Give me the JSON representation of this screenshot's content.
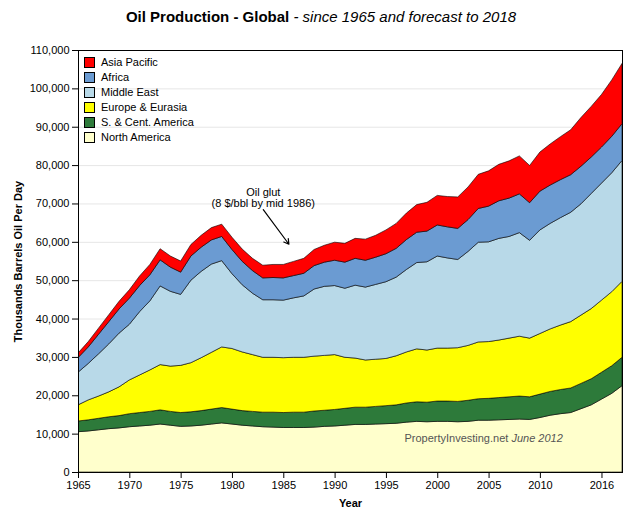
{
  "chart_data": {
    "type": "area",
    "stacked": true,
    "title": "Oil Production - Global",
    "subtitle": "- since 1965 and forecast to 2018",
    "xlabel": "Year",
    "ylabel": "Thousands Barrels Oil Per Day",
    "x": [
      1965,
      1966,
      1967,
      1968,
      1969,
      1970,
      1971,
      1972,
      1973,
      1974,
      1975,
      1976,
      1977,
      1978,
      1979,
      1980,
      1981,
      1982,
      1983,
      1984,
      1985,
      1986,
      1987,
      1988,
      1989,
      1990,
      1991,
      1992,
      1993,
      1994,
      1995,
      1996,
      1997,
      1998,
      1999,
      2000,
      2001,
      2002,
      2003,
      2004,
      2005,
      2006,
      2007,
      2008,
      2009,
      2010,
      2011,
      2012,
      2013,
      2014,
      2015,
      2016,
      2017,
      2018
    ],
    "series": [
      {
        "name": "North America",
        "color": "#FFFFCC",
        "values": [
          10500,
          10700,
          11000,
          11300,
          11500,
          11800,
          12000,
          12200,
          12500,
          12200,
          11900,
          12000,
          12200,
          12500,
          12800,
          12500,
          12200,
          12000,
          11800,
          11700,
          11600,
          11600,
          11600,
          11700,
          11900,
          12000,
          12200,
          12400,
          12400,
          12500,
          12600,
          12700,
          13000,
          13200,
          13100,
          13200,
          13200,
          13100,
          13200,
          13500,
          13500,
          13600,
          13700,
          13800,
          13700,
          14200,
          14800,
          15200,
          15500,
          16500,
          17500,
          19000,
          20500,
          22500
        ]
      },
      {
        "name": "S. & Cent. America",
        "color": "#2D7A3A",
        "values": [
          2800,
          2900,
          3000,
          3100,
          3200,
          3400,
          3500,
          3600,
          3700,
          3600,
          3600,
          3700,
          3800,
          3900,
          4000,
          3900,
          3800,
          3800,
          3800,
          3900,
          3900,
          4000,
          4000,
          4200,
          4200,
          4300,
          4400,
          4500,
          4500,
          4600,
          4700,
          4800,
          5000,
          5100,
          5100,
          5300,
          5300,
          5300,
          5500,
          5600,
          5700,
          5800,
          5900,
          6000,
          5900,
          6100,
          6200,
          6300,
          6400,
          6600,
          6800,
          7000,
          7200,
          7400
        ]
      },
      {
        "name": "Europe & Eurasia",
        "color": "#FFFF00",
        "values": [
          4200,
          5200,
          5800,
          6500,
          7500,
          8800,
          9800,
          10800,
          11800,
          11800,
          12300,
          12800,
          13800,
          14800,
          15800,
          15800,
          15300,
          14800,
          14300,
          14300,
          14300,
          14300,
          14300,
          14300,
          14300,
          14300,
          13300,
          12800,
          12300,
          12300,
          12300,
          12800,
          13300,
          13800,
          13600,
          13800,
          13800,
          14000,
          14300,
          14800,
          14800,
          15000,
          15300,
          15600,
          15300,
          15800,
          16300,
          16800,
          17300,
          17800,
          18300,
          18800,
          19300,
          19800
        ]
      },
      {
        "name": "Middle East",
        "color": "#B8D9E8",
        "values": [
          8500,
          9500,
          11000,
          12500,
          14000,
          14500,
          16500,
          18000,
          20500,
          19500,
          18500,
          21500,
          22500,
          23000,
          22500,
          19500,
          17500,
          16000,
          15000,
          15000,
          15000,
          15500,
          16000,
          17500,
          18000,
          18000,
          18000,
          19000,
          19000,
          19500,
          20000,
          20500,
          21500,
          22500,
          23000,
          24000,
          23500,
          23000,
          24500,
          26000,
          26000,
          26500,
          26500,
          27000,
          25500,
          27000,
          27500,
          28000,
          28500,
          29000,
          30000,
          30500,
          31000,
          31500
        ]
      },
      {
        "name": "Africa",
        "color": "#6B9BD2",
        "values": [
          3800,
          4300,
          5100,
          5800,
          6300,
          6800,
          6800,
          6800,
          6800,
          6300,
          5800,
          6300,
          6300,
          6300,
          6300,
          6300,
          6100,
          5900,
          5700,
          5800,
          5800,
          5800,
          5900,
          6100,
          6300,
          6600,
          6800,
          7000,
          7000,
          7100,
          7300,
          7500,
          7800,
          7900,
          8000,
          8100,
          8100,
          8100,
          8300,
          8800,
          9300,
          9800,
          10000,
          10100,
          9800,
          10100,
          10000,
          9900,
          9800,
          9800,
          9500,
          9400,
          9500,
          9600
        ]
      },
      {
        "name": "Asia Pacific",
        "color": "#FF0000",
        "values": [
          1200,
          1400,
          1600,
          1800,
          2000,
          2200,
          2500,
          2700,
          2900,
          2900,
          2900,
          3000,
          3100,
          3200,
          3200,
          3200,
          3200,
          3200,
          3300,
          3400,
          3500,
          3700,
          3900,
          4200,
          4400,
          4700,
          4900,
          5200,
          5500,
          5700,
          6200,
          6500,
          6900,
          7200,
          7500,
          7700,
          7900,
          8200,
          8500,
          8900,
          9200,
          9500,
          9700,
          9900,
          9700,
          10200,
          10700,
          11200,
          11700,
          12700,
          13200,
          13700,
          14700,
          15700
        ]
      }
    ],
    "xlim": [
      1965,
      2018
    ],
    "ylim": [
      0,
      110000
    ],
    "xticks": [
      1965,
      1970,
      1975,
      1980,
      1985,
      1990,
      1995,
      2000,
      2005,
      2010,
      2016
    ],
    "yticks": [
      0,
      {
        "value": 10000,
        "label": "10,000"
      },
      {
        "value": 20000,
        "label": "20,000"
      },
      {
        "value": 30000,
        "label": "30,000"
      },
      {
        "value": 40000,
        "label": "40,000"
      },
      {
        "value": 50000,
        "label": "50,000"
      },
      {
        "value": 60000,
        "label": "60,000"
      },
      {
        "value": 70000,
        "label": "70,000"
      },
      {
        "value": 80000,
        "label": "80,000"
      },
      {
        "value": 90000,
        "label": "90,000"
      },
      {
        "value": 100000,
        "label": "100,000"
      },
      {
        "value": 110000,
        "label": "110,000"
      }
    ],
    "grid": true,
    "legend": "upper left",
    "annotations": [
      {
        "text": "Oil glut\n(8 $/bbl by mid 1986)",
        "x": 1983,
        "y": 68500,
        "arrow_x": 1985.5,
        "arrow_y": 59500
      }
    ],
    "watermark": [
      "PropertyInvesting.net",
      "June 2012"
    ]
  }
}
